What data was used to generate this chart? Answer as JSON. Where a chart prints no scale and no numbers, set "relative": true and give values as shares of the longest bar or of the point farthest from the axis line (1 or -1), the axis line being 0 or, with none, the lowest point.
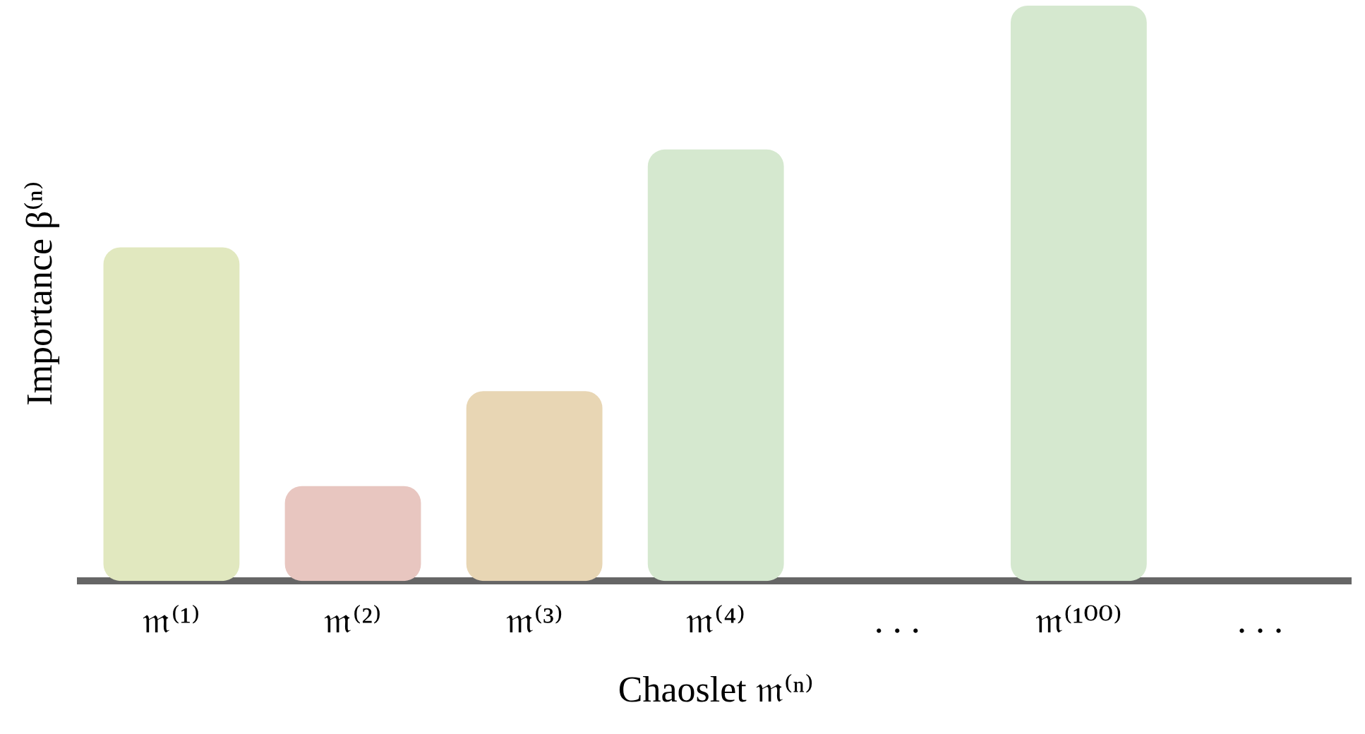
{
  "chart_data": {
    "type": "bar",
    "relative": true,
    "xlabel": "Chaoslet 𝔪⁽ⁿ⁾",
    "ylabel": "Importance β⁽ⁿ⁾",
    "categories": [
      "𝔪⁽¹⁾",
      "𝔪⁽²⁾",
      "𝔪⁽³⁾",
      "𝔪⁽⁴⁾",
      ". . .",
      "𝔪⁽¹⁰⁰⁾",
      ". . ."
    ],
    "values": [
      0.58,
      0.165,
      0.33,
      0.75,
      null,
      1,
      null
    ],
    "colors": [
      "#e1e8bf",
      "#e8c6c0",
      "#e8d6b4",
      "#d5e8cf",
      "#d5e8cf",
      "#d5e8cf",
      "#d5e8cf"
    ],
    "grid": false,
    "legend": false
  }
}
